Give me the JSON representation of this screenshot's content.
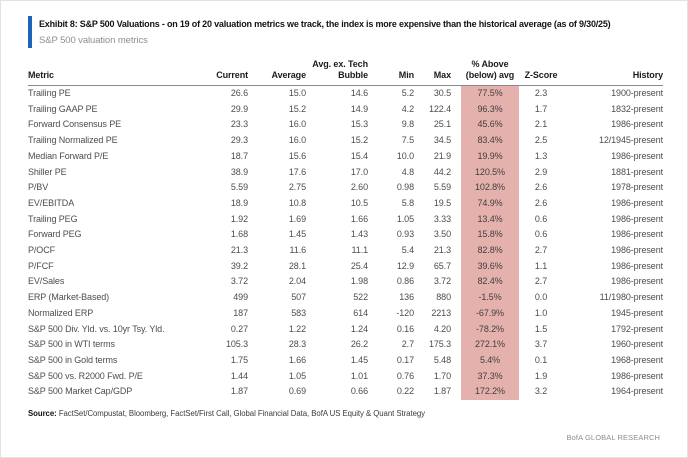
{
  "exhibit": {
    "title": "Exhibit 8: S&P 500 Valuations - on 19 of 20 valuation metrics we track, the index is more expensive than the historical average (as of 9/30/25)",
    "subtitle": "S&P 500 valuation metrics",
    "accent_color": "#1d64b8",
    "highlight_color": "#e5b1ad"
  },
  "table": {
    "columns": [
      {
        "label": "Metric"
      },
      {
        "label": "Current"
      },
      {
        "label": "Average"
      },
      {
        "label_top": "Avg. ex. Tech",
        "label": "Bubble"
      },
      {
        "label": "Min"
      },
      {
        "label": "Max"
      },
      {
        "label_top": "% Above",
        "label": "(below) avg"
      },
      {
        "label": "Z-Score"
      },
      {
        "label": "History"
      }
    ],
    "rows": [
      [
        "Trailing PE",
        "26.6",
        "15.0",
        "14.6",
        "5.2",
        "30.5",
        "77.5%",
        "2.3",
        "1900-present"
      ],
      [
        "Trailing GAAP PE",
        "29.9",
        "15.2",
        "14.9",
        "4.2",
        "122.4",
        "96.3%",
        "1.7",
        "1832-present"
      ],
      [
        "Forward Consensus PE",
        "23.3",
        "16.0",
        "15.3",
        "9.8",
        "25.1",
        "45.6%",
        "2.1",
        "1986-present"
      ],
      [
        "Trailing Normalized PE",
        "29.3",
        "16.0",
        "15.2",
        "7.5",
        "34.5",
        "83.4%",
        "2.5",
        "12/1945-present"
      ],
      [
        "Median Forward P/E",
        "18.7",
        "15.6",
        "15.4",
        "10.0",
        "21.9",
        "19.9%",
        "1.3",
        "1986-present"
      ],
      [
        "Shiller PE",
        "38.9",
        "17.6",
        "17.0",
        "4.8",
        "44.2",
        "120.5%",
        "2.9",
        "1881-present"
      ],
      [
        "P/BV",
        "5.59",
        "2.75",
        "2.60",
        "0.98",
        "5.59",
        "102.8%",
        "2.6",
        "1978-present"
      ],
      [
        "EV/EBITDA",
        "18.9",
        "10.8",
        "10.5",
        "5.8",
        "19.5",
        "74.9%",
        "2.6",
        "1986-present"
      ],
      [
        "Trailing PEG",
        "1.92",
        "1.69",
        "1.66",
        "1.05",
        "3.33",
        "13.4%",
        "0.6",
        "1986-present"
      ],
      [
        "Forward PEG",
        "1.68",
        "1.45",
        "1.43",
        "0.93",
        "3.50",
        "15.8%",
        "0.6",
        "1986-present"
      ],
      [
        "P/OCF",
        "21.3",
        "11.6",
        "11.1",
        "5.4",
        "21.3",
        "82.8%",
        "2.7",
        "1986-present"
      ],
      [
        "P/FCF",
        "39.2",
        "28.1",
        "25.4",
        "12.9",
        "65.7",
        "39.6%",
        "1.1",
        "1986-present"
      ],
      [
        "EV/Sales",
        "3.72",
        "2.04",
        "1.98",
        "0.86",
        "3.72",
        "82.4%",
        "2.7",
        "1986-present"
      ],
      [
        "ERP (Market-Based)",
        "499",
        "507",
        "522",
        "136",
        "880",
        "-1.5%",
        "0.0",
        "11/1980-present"
      ],
      [
        "Normalized ERP",
        "187",
        "583",
        "614",
        "-120",
        "2213",
        "-67.9%",
        "1.0",
        "1945-present"
      ],
      [
        "S&P 500 Div. Yld. vs. 10yr Tsy. Yld.",
        "0.27",
        "1.22",
        "1.24",
        "0.16",
        "4.20",
        "-78.2%",
        "1.5",
        "1792-present"
      ],
      [
        "S&P 500 in WTI terms",
        "105.3",
        "28.3",
        "26.2",
        "2.7",
        "175.3",
        "272.1%",
        "3.7",
        "1960-present"
      ],
      [
        "S&P 500 in Gold terms",
        "1.75",
        "1.66",
        "1.45",
        "0.17",
        "5.48",
        "5.4%",
        "0.1",
        "1968-present"
      ],
      [
        "S&P 500 vs. R2000 Fwd. P/E",
        "1.44",
        "1.05",
        "1.01",
        "0.76",
        "1.70",
        "37.3%",
        "1.9",
        "1986-present"
      ],
      [
        "S&P 500 Market Cap/GDP",
        "1.87",
        "0.69",
        "0.66",
        "0.22",
        "1.87",
        "172.2%",
        "3.2",
        "1964-present"
      ]
    ]
  },
  "footer": {
    "source_label": "Source:",
    "source_text": "FactSet/Compustat, Bloomberg, FactSet/First Call, Global Financial Data, BofA US Equity & Quant Strategy",
    "branding": "BofA GLOBAL RESEARCH"
  }
}
